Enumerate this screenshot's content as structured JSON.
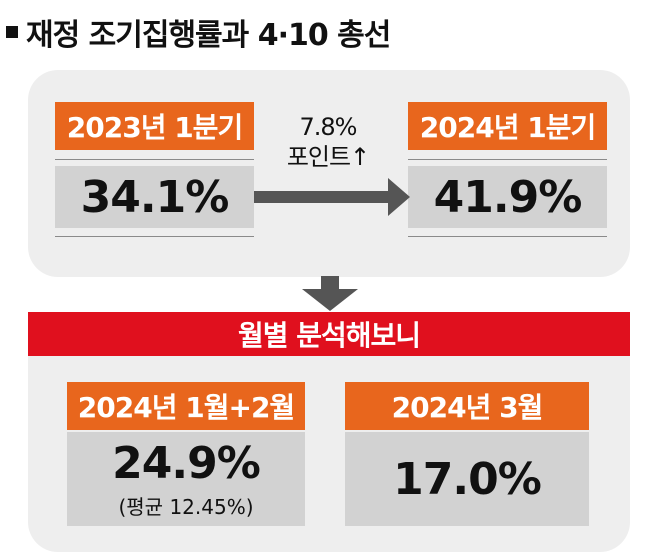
{
  "title": "재정 조기집행률과 4·10 총선",
  "comparison": {
    "left": {
      "period": "2023년 1분기",
      "value": "34.1%"
    },
    "change": {
      "line1": "7.8%",
      "line2": "포인트↑"
    },
    "right": {
      "period": "2024년 1분기",
      "value": "41.9%"
    }
  },
  "monthly": {
    "heading": "월별 분석해보니",
    "left": {
      "period": "2024년 1월+2월",
      "value": "24.9%",
      "note": "(평균 12.45%)"
    },
    "right": {
      "period": "2024년 3월",
      "value": "17.0%"
    }
  },
  "colors": {
    "accent_orange": "#e8661d",
    "banner_red": "#e0101e",
    "panel_gray": "#eeeeee",
    "value_gray": "#d2d2d2",
    "arrow_gray": "#555555"
  }
}
